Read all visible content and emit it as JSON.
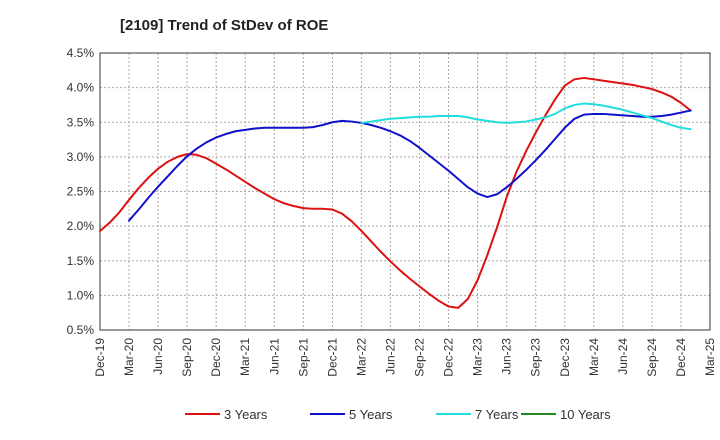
{
  "chart_data": {
    "type": "line",
    "title": "[2109]  Trend of StDev of ROE",
    "xlabel": "",
    "ylabel": "",
    "x_ticks": [
      "Dec-19",
      "Mar-20",
      "Jun-20",
      "Sep-20",
      "Dec-20",
      "Mar-21",
      "Jun-21",
      "Sep-21",
      "Dec-21",
      "Mar-22",
      "Jun-22",
      "Sep-22",
      "Dec-22",
      "Mar-23",
      "Jun-23",
      "Sep-23",
      "Dec-23",
      "Mar-24",
      "Jun-24",
      "Sep-24",
      "Dec-24",
      "Mar-25"
    ],
    "y_ticks": [
      "0.5%",
      "1.0%",
      "1.5%",
      "2.0%",
      "2.5%",
      "3.0%",
      "3.5%",
      "4.0%",
      "4.5%"
    ],
    "ylim": [
      0.5,
      4.5
    ],
    "grid": true,
    "legend_position": "bottom",
    "series": [
      {
        "name": "3 Years",
        "color": "#dd1111",
        "points": [
          [
            "Dec-19",
            1.93
          ],
          [
            "Jan-20",
            2.05
          ],
          [
            "Feb-20",
            2.2
          ],
          [
            "Mar-20",
            2.38
          ],
          [
            "Apr-20",
            2.55
          ],
          [
            "May-20",
            2.7
          ],
          [
            "Jun-20",
            2.83
          ],
          [
            "Jul-20",
            2.93
          ],
          [
            "Aug-20",
            3.0
          ],
          [
            "Sep-20",
            3.04
          ],
          [
            "Oct-20",
            3.03
          ],
          [
            "Nov-20",
            2.98
          ],
          [
            "Dec-20",
            2.9
          ],
          [
            "Jan-21",
            2.82
          ],
          [
            "Feb-21",
            2.73
          ],
          [
            "Mar-21",
            2.64
          ],
          [
            "Apr-21",
            2.55
          ],
          [
            "May-21",
            2.47
          ],
          [
            "Jun-21",
            2.39
          ],
          [
            "Jul-21",
            2.33
          ],
          [
            "Aug-21",
            2.29
          ],
          [
            "Sep-21",
            2.26
          ],
          [
            "Oct-21",
            2.25
          ],
          [
            "Nov-21",
            2.25
          ],
          [
            "Dec-21",
            2.24
          ],
          [
            "Jan-22",
            2.18
          ],
          [
            "Feb-22",
            2.07
          ],
          [
            "Mar-22",
            1.93
          ],
          [
            "Apr-22",
            1.78
          ],
          [
            "May-22",
            1.63
          ],
          [
            "Jun-22",
            1.49
          ],
          [
            "Jul-22",
            1.36
          ],
          [
            "Aug-22",
            1.24
          ],
          [
            "Sep-22",
            1.13
          ],
          [
            "Oct-22",
            1.02
          ],
          [
            "Nov-22",
            0.92
          ],
          [
            "Dec-22",
            0.84
          ],
          [
            "Jan-23",
            0.82
          ],
          [
            "Feb-23",
            0.95
          ],
          [
            "Mar-23",
            1.22
          ],
          [
            "Apr-23",
            1.58
          ],
          [
            "May-23",
            1.98
          ],
          [
            "Jun-23",
            2.42
          ],
          [
            "Jul-23",
            2.78
          ],
          [
            "Aug-23",
            3.08
          ],
          [
            "Sep-23",
            3.35
          ],
          [
            "Oct-23",
            3.6
          ],
          [
            "Nov-23",
            3.83
          ],
          [
            "Dec-23",
            4.03
          ],
          [
            "Jan-24",
            4.12
          ],
          [
            "Feb-24",
            4.14
          ],
          [
            "Mar-24",
            4.12
          ],
          [
            "Apr-24",
            4.1
          ],
          [
            "May-24",
            4.08
          ],
          [
            "Jun-24",
            4.06
          ],
          [
            "Jul-24",
            4.04
          ],
          [
            "Aug-24",
            4.01
          ],
          [
            "Sep-24",
            3.98
          ],
          [
            "Oct-24",
            3.93
          ],
          [
            "Nov-24",
            3.87
          ],
          [
            "Dec-24",
            3.78
          ],
          [
            "Jan-25",
            3.67
          ]
        ]
      },
      {
        "name": "5 Years",
        "color": "#1111cc",
        "points": [
          [
            "Mar-20",
            2.08
          ],
          [
            "Apr-20",
            2.24
          ],
          [
            "May-20",
            2.41
          ],
          [
            "Jun-20",
            2.57
          ],
          [
            "Jul-20",
            2.72
          ],
          [
            "Aug-20",
            2.87
          ],
          [
            "Sep-20",
            3.01
          ],
          [
            "Oct-20",
            3.12
          ],
          [
            "Nov-20",
            3.21
          ],
          [
            "Dec-20",
            3.28
          ],
          [
            "Jan-21",
            3.33
          ],
          [
            "Feb-21",
            3.37
          ],
          [
            "Mar-21",
            3.39
          ],
          [
            "Apr-21",
            3.41
          ],
          [
            "May-21",
            3.42
          ],
          [
            "Jun-21",
            3.42
          ],
          [
            "Jul-21",
            3.42
          ],
          [
            "Aug-21",
            3.42
          ],
          [
            "Sep-21",
            3.42
          ],
          [
            "Oct-21",
            3.43
          ],
          [
            "Nov-21",
            3.46
          ],
          [
            "Dec-21",
            3.5
          ],
          [
            "Jan-22",
            3.52
          ],
          [
            "Feb-22",
            3.51
          ],
          [
            "Mar-22",
            3.49
          ],
          [
            "Apr-22",
            3.46
          ],
          [
            "May-22",
            3.42
          ],
          [
            "Jun-22",
            3.37
          ],
          [
            "Jul-22",
            3.31
          ],
          [
            "Aug-22",
            3.23
          ],
          [
            "Sep-22",
            3.13
          ],
          [
            "Oct-22",
            3.02
          ],
          [
            "Nov-22",
            2.91
          ],
          [
            "Dec-22",
            2.8
          ],
          [
            "Jan-23",
            2.68
          ],
          [
            "Feb-23",
            2.56
          ],
          [
            "Mar-23",
            2.47
          ],
          [
            "Apr-23",
            2.42
          ],
          [
            "May-23",
            2.46
          ],
          [
            "Jun-23",
            2.56
          ],
          [
            "Jul-23",
            2.68
          ],
          [
            "Aug-23",
            2.81
          ],
          [
            "Sep-23",
            2.95
          ],
          [
            "Oct-23",
            3.1
          ],
          [
            "Nov-23",
            3.26
          ],
          [
            "Dec-23",
            3.42
          ],
          [
            "Jan-24",
            3.55
          ],
          [
            "Feb-24",
            3.61
          ],
          [
            "Mar-24",
            3.62
          ],
          [
            "Apr-24",
            3.62
          ],
          [
            "May-24",
            3.61
          ],
          [
            "Jun-24",
            3.6
          ],
          [
            "Jul-24",
            3.59
          ],
          [
            "Aug-24",
            3.58
          ],
          [
            "Sep-24",
            3.58
          ],
          [
            "Oct-24",
            3.59
          ],
          [
            "Nov-24",
            3.61
          ],
          [
            "Dec-24",
            3.64
          ],
          [
            "Jan-25",
            3.67
          ]
        ]
      },
      {
        "name": "7 Years",
        "color": "#22dddd",
        "points": [
          [
            "Mar-22",
            3.49
          ],
          [
            "Apr-22",
            3.51
          ],
          [
            "May-22",
            3.53
          ],
          [
            "Jun-22",
            3.55
          ],
          [
            "Jul-22",
            3.56
          ],
          [
            "Aug-22",
            3.57
          ],
          [
            "Sep-22",
            3.58
          ],
          [
            "Oct-22",
            3.58
          ],
          [
            "Nov-22",
            3.59
          ],
          [
            "Dec-22",
            3.59
          ],
          [
            "Jan-23",
            3.59
          ],
          [
            "Feb-23",
            3.57
          ],
          [
            "Mar-23",
            3.54
          ],
          [
            "Apr-23",
            3.52
          ],
          [
            "May-23",
            3.5
          ],
          [
            "Jun-23",
            3.49
          ],
          [
            "Jul-23",
            3.5
          ],
          [
            "Aug-23",
            3.51
          ],
          [
            "Sep-23",
            3.54
          ],
          [
            "Oct-23",
            3.57
          ],
          [
            "Nov-23",
            3.62
          ],
          [
            "Dec-23",
            3.7
          ],
          [
            "Jan-24",
            3.75
          ],
          [
            "Feb-24",
            3.77
          ],
          [
            "Mar-24",
            3.76
          ],
          [
            "Apr-24",
            3.74
          ],
          [
            "May-24",
            3.71
          ],
          [
            "Jun-24",
            3.68
          ],
          [
            "Jul-24",
            3.64
          ],
          [
            "Aug-24",
            3.6
          ],
          [
            "Sep-24",
            3.56
          ],
          [
            "Oct-24",
            3.51
          ],
          [
            "Nov-24",
            3.46
          ],
          [
            "Dec-24",
            3.42
          ],
          [
            "Jan-25",
            3.4
          ]
        ]
      },
      {
        "name": "10 Years",
        "color": "#228822",
        "points": []
      }
    ]
  }
}
